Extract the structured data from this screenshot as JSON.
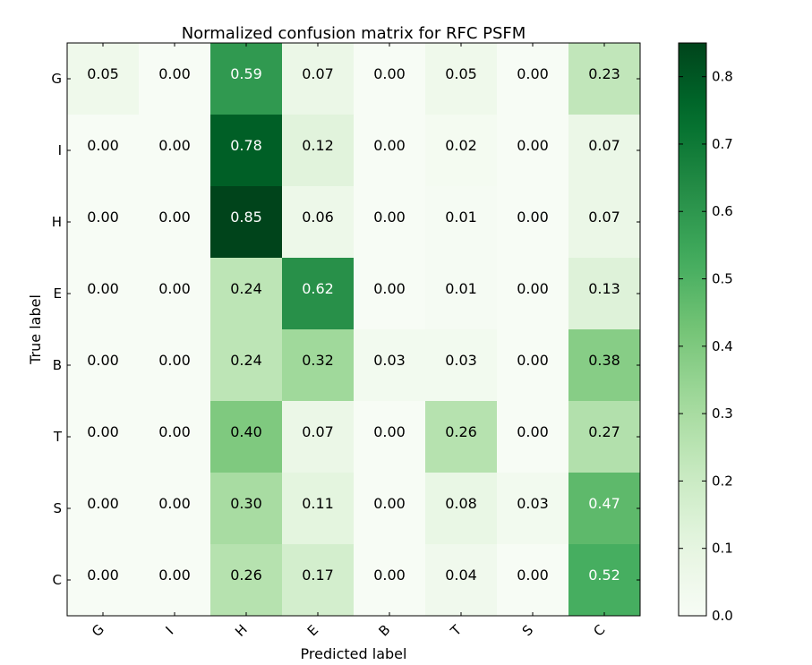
{
  "chart_data": {
    "type": "heatmap",
    "title": "Normalized confusion matrix for RFC PSFM",
    "xlabel": "Predicted label",
    "ylabel": "True label",
    "x_categories": [
      "G",
      "I",
      "H",
      "E",
      "B",
      "T",
      "S",
      "C"
    ],
    "y_categories": [
      "G",
      "I",
      "H",
      "E",
      "B",
      "T",
      "S",
      "C"
    ],
    "values": [
      [
        0.05,
        0.0,
        0.59,
        0.07,
        0.0,
        0.05,
        0.0,
        0.23
      ],
      [
        0.0,
        0.0,
        0.78,
        0.12,
        0.0,
        0.02,
        0.0,
        0.07
      ],
      [
        0.0,
        0.0,
        0.85,
        0.06,
        0.0,
        0.01,
        0.0,
        0.07
      ],
      [
        0.0,
        0.0,
        0.24,
        0.62,
        0.0,
        0.01,
        0.0,
        0.13
      ],
      [
        0.0,
        0.0,
        0.24,
        0.32,
        0.03,
        0.03,
        0.0,
        0.38
      ],
      [
        0.0,
        0.0,
        0.4,
        0.07,
        0.0,
        0.26,
        0.0,
        0.27
      ],
      [
        0.0,
        0.0,
        0.3,
        0.11,
        0.0,
        0.08,
        0.03,
        0.47
      ],
      [
        0.0,
        0.0,
        0.26,
        0.17,
        0.0,
        0.04,
        0.0,
        0.52
      ]
    ],
    "value_labels": [
      [
        "0.05",
        "0.00",
        "0.59",
        "0.07",
        "0.00",
        "0.05",
        "0.00",
        "0.23"
      ],
      [
        "0.00",
        "0.00",
        "0.78",
        "0.12",
        "0.00",
        "0.02",
        "0.00",
        "0.07"
      ],
      [
        "0.00",
        "0.00",
        "0.85",
        "0.06",
        "0.00",
        "0.01",
        "0.00",
        "0.07"
      ],
      [
        "0.00",
        "0.00",
        "0.24",
        "0.62",
        "0.00",
        "0.01",
        "0.00",
        "0.13"
      ],
      [
        "0.00",
        "0.00",
        "0.24",
        "0.32",
        "0.03",
        "0.03",
        "0.00",
        "0.38"
      ],
      [
        "0.00",
        "0.00",
        "0.40",
        "0.07",
        "0.00",
        "0.26",
        "0.00",
        "0.27"
      ],
      [
        "0.00",
        "0.00",
        "0.30",
        "0.11",
        "0.00",
        "0.08",
        "0.03",
        "0.47"
      ],
      [
        "0.00",
        "0.00",
        "0.26",
        "0.17",
        "0.00",
        "0.04",
        "0.00",
        "0.52"
      ]
    ],
    "colorscale": "Greens",
    "color_range": [
      0.0,
      0.85
    ],
    "colorbar_ticks": [
      "0.0",
      "0.1",
      "0.2",
      "0.3",
      "0.4",
      "0.5",
      "0.6",
      "0.7",
      "0.8"
    ],
    "grid": false
  }
}
